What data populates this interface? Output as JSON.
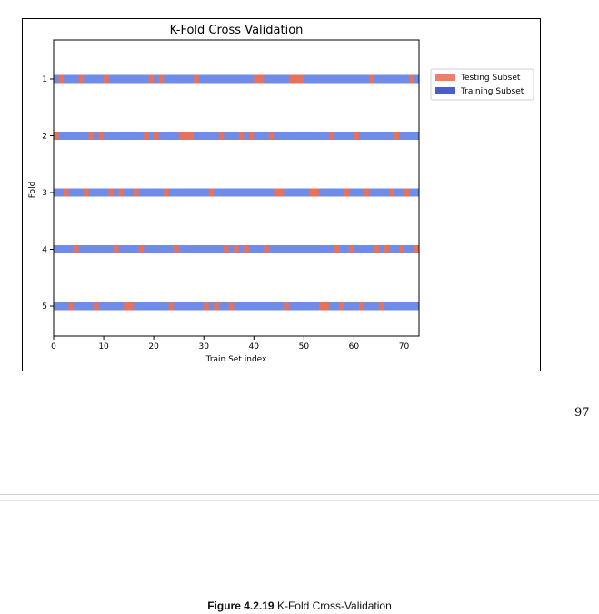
{
  "page": {
    "page_number": "97",
    "caption_label": "Figure 4.2.19",
    "caption_text": "K-Fold Cross-Validation"
  },
  "chart_data": {
    "type": "bar",
    "title": "K-Fold Cross Validation",
    "xlabel": "Train Set index",
    "ylabel": "Fold",
    "xlim": [
      0,
      73
    ],
    "x_ticks": [
      0,
      10,
      20,
      30,
      40,
      50,
      60,
      70
    ],
    "folds": [
      1,
      2,
      3,
      4,
      5
    ],
    "n_samples": 73,
    "legend": {
      "placement": "right",
      "entries": [
        {
          "label": "Testing Subset",
          "color": "#ed7f6a"
        },
        {
          "label": "Training Subset",
          "color": "#4a5ec8"
        }
      ]
    },
    "colors": {
      "train": "#6f8ce8",
      "test": "#e8715c"
    },
    "test_indices": [
      [
        1,
        5,
        10,
        19,
        21,
        28,
        40,
        41,
        47,
        48,
        49,
        63,
        71
      ],
      [
        0,
        7,
        9,
        18,
        20,
        25,
        26,
        27,
        33,
        37,
        39,
        43,
        55,
        60,
        68
      ],
      [
        2,
        6,
        11,
        13,
        16,
        22,
        31,
        44,
        45,
        51,
        52,
        58,
        62,
        67,
        70
      ],
      [
        4,
        12,
        17,
        24,
        34,
        36,
        38,
        42,
        56,
        59,
        64,
        66,
        69,
        72
      ],
      [
        3,
        8,
        14,
        15,
        23,
        30,
        32,
        35,
        46,
        53,
        54,
        57,
        61,
        65
      ]
    ]
  }
}
